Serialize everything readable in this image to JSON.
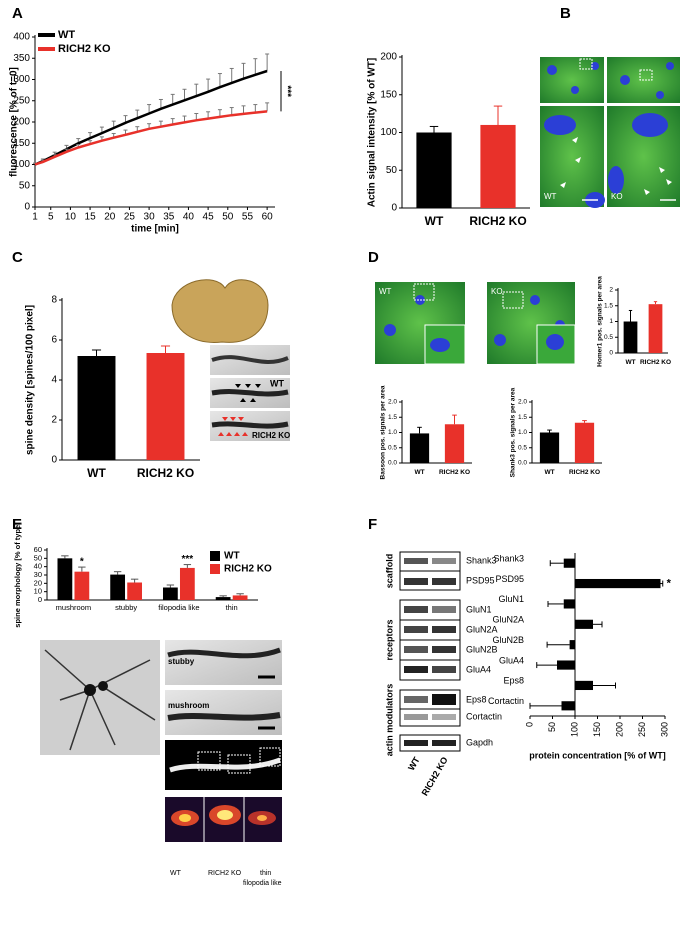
{
  "panel_labels": [
    "A",
    "B",
    "C",
    "D",
    "E",
    "F"
  ],
  "images": {
    "B": [
      "WT",
      "KO"
    ],
    "C": [
      "WT",
      "RICH2 KO"
    ],
    "D": [
      "WT",
      "KO"
    ],
    "E": [
      "WT",
      "RICH2 KO",
      "stubby",
      "mushroom",
      "thin",
      "filopodia like"
    ]
  },
  "blots": {
    "group_labels": [
      "scaffold",
      "receptors",
      "actin modulators"
    ],
    "rows": [
      "Shank3",
      "PSD95",
      "GluN1",
      "GluN2A",
      "GluN2B",
      "GluA4",
      "Eps8",
      "Cortactin",
      "Gapdh"
    ],
    "lanes": [
      "WT",
      "RICH2 KO"
    ]
  },
  "chart_data": [
    {
      "type": "line",
      "x_label": "time [min]",
      "y_label": "fluorescence [% of t=0]",
      "x": [
        1,
        3,
        6,
        9,
        12,
        15,
        18,
        21,
        24,
        27,
        30,
        33,
        36,
        39,
        42,
        45,
        48,
        51,
        54,
        57,
        60
      ],
      "series": [
        {
          "name": "WT",
          "color": "#000000",
          "values": [
            100,
            108,
            122,
            136,
            150,
            162,
            174,
            186,
            198,
            209,
            220,
            231,
            241,
            251,
            261,
            271,
            282,
            292,
            302,
            311,
            320
          ],
          "errors": [
            3,
            5,
            7,
            9,
            11,
            13,
            14,
            16,
            17,
            19,
            21,
            22,
            24,
            26,
            28,
            30,
            32,
            34,
            36,
            38,
            40
          ]
        },
        {
          "name": "RICH2 KO",
          "color": "#e8312a",
          "values": [
            100,
            106,
            118,
            130,
            140,
            148,
            156,
            163,
            170,
            177,
            184,
            189,
            194,
            199,
            204,
            208,
            212,
            216,
            219,
            222,
            225
          ],
          "errors": [
            3,
            4,
            5,
            6,
            7,
            8,
            9,
            10,
            11,
            12,
            12,
            13,
            14,
            15,
            16,
            16,
            17,
            18,
            19,
            19,
            20
          ]
        }
      ],
      "xlim": [
        1,
        62
      ],
      "xticks": [
        1,
        5,
        10,
        15,
        20,
        25,
        30,
        35,
        40,
        45,
        50,
        55,
        60
      ],
      "ylim": [
        0,
        400
      ],
      "yticks": [
        0,
        50,
        100,
        150,
        200,
        250,
        300,
        350,
        400
      ],
      "annotation": "***",
      "legend": "upper left"
    },
    {
      "type": "bar",
      "y_label": "Actin signal intensity [% of WT]",
      "categories": [
        "WT",
        "RICH2 KO"
      ],
      "values": [
        100,
        110
      ],
      "errors": [
        8,
        25
      ],
      "colors": [
        "#000000",
        "#e8312a"
      ],
      "ylim": [
        0,
        200
      ],
      "yticks": [
        0,
        50,
        100,
        150,
        200
      ]
    },
    {
      "type": "bar",
      "y_label": "spine density  [spines/100 pixel]",
      "categories": [
        "WT",
        "RICH2 KO"
      ],
      "values": [
        5.2,
        5.35
      ],
      "errors": [
        0.3,
        0.35
      ],
      "colors": [
        "#000000",
        "#e8312a"
      ],
      "ylim": [
        0,
        8
      ],
      "yticks": [
        0,
        2,
        4,
        6,
        8
      ]
    },
    {
      "type": "bar",
      "y_label": "Homer1 pos. signals per area",
      "categories": [
        "WT",
        "RICH2 KO"
      ],
      "values": [
        1.0,
        1.55
      ],
      "errors": [
        0.35,
        0.08
      ],
      "colors": [
        "#000000",
        "#e8312a"
      ],
      "ylim": [
        0,
        2
      ],
      "yticks": [
        0,
        0.5,
        1,
        1.5,
        2
      ]
    },
    {
      "type": "bar",
      "y_label": "Bassoon pos. signals per area",
      "categories": [
        "WT",
        "RICH2 KO"
      ],
      "values": [
        0.97,
        1.27
      ],
      "errors": [
        0.2,
        0.3
      ],
      "colors": [
        "#000000",
        "#e8312a"
      ],
      "ylim": [
        0,
        2
      ],
      "yticks": [
        {
          "value": 0,
          "label": "0.0"
        },
        0.5,
        {
          "value": 1,
          "label": "1.0"
        },
        1.5,
        {
          "value": 2,
          "label": "2.0"
        }
      ]
    },
    {
      "type": "bar",
      "y_label": "Shank3 pos. signals per area",
      "categories": [
        "WT",
        "RICH2 KO"
      ],
      "values": [
        1.0,
        1.32
      ],
      "errors": [
        0.08,
        0.07
      ],
      "colors": [
        "#000000",
        "#e8312a"
      ],
      "ylim": [
        0,
        2
      ],
      "yticks": [
        {
          "value": 0,
          "label": "0.0"
        },
        0.5,
        {
          "value": 1,
          "label": "1.0"
        },
        1.5,
        {
          "value": 2,
          "label": "2.0"
        }
      ]
    },
    {
      "type": "grouped_bar",
      "y_label": "spine morphology   [% of type]",
      "categories": [
        "mushroom",
        "stubby",
        "filopodia like",
        "thin"
      ],
      "series": [
        {
          "name": "WT",
          "color": "#000000",
          "values": [
            50,
            30.5,
            15,
            3.5
          ],
          "errors": [
            3,
            3.5,
            3,
            1.5
          ]
        },
        {
          "name": "RICH2 KO",
          "color": "#e8312a",
          "values": [
            34,
            21,
            38.5,
            5.5
          ],
          "errors": [
            5.5,
            4,
            4,
            2
          ],
          "significance": [
            "*",
            null,
            "***",
            null
          ]
        }
      ],
      "ylim": [
        0,
        60
      ],
      "yticks": [
        0,
        10,
        20,
        30,
        40,
        50,
        60
      ],
      "legend": "upper right"
    },
    {
      "type": "hbar",
      "x_label": "protein concentration [% of WT]",
      "categories": [
        "Shank3",
        "PSD95",
        "GluN1",
        "GluN2A",
        "GluN2B",
        "GluA4",
        "Eps8",
        "Cortactin"
      ],
      "values": [
        75,
        290,
        75,
        140,
        88,
        60,
        140,
        70
      ],
      "errors": [
        30,
        5,
        35,
        20,
        50,
        45,
        50,
        70
      ],
      "significance": [
        null,
        "*",
        null,
        null,
        null,
        null,
        null,
        null
      ],
      "color": "#000000",
      "baseline": 100,
      "xlim": [
        0,
        300
      ],
      "xticks": [
        0,
        50,
        100,
        150,
        200,
        250,
        300
      ]
    }
  ]
}
